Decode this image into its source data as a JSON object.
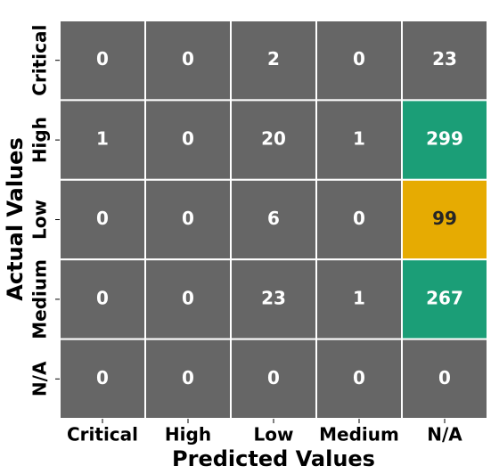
{
  "chart_data": {
    "type": "heatmap",
    "x_label": "Predicted Values",
    "y_label": "Actual Values",
    "x_categories": [
      "Critical",
      "High",
      "Low",
      "Medium",
      "N/A"
    ],
    "y_categories": [
      "Critical",
      "High",
      "Low",
      "Medium",
      "N/A"
    ],
    "values": [
      [
        0,
        0,
        2,
        0,
        23
      ],
      [
        1,
        0,
        20,
        1,
        299
      ],
      [
        0,
        0,
        6,
        0,
        99
      ],
      [
        0,
        0,
        23,
        1,
        267
      ],
      [
        0,
        0,
        0,
        0,
        0
      ]
    ],
    "cell_colors": [
      [
        "#666666",
        "#666666",
        "#666666",
        "#666666",
        "#666666"
      ],
      [
        "#666666",
        "#666666",
        "#666666",
        "#666666",
        "#1b9e77"
      ],
      [
        "#666666",
        "#666666",
        "#666666",
        "#666666",
        "#e6ab02"
      ],
      [
        "#666666",
        "#666666",
        "#666666",
        "#666666",
        "#1b9e77"
      ],
      [
        "#666666",
        "#666666",
        "#666666",
        "#666666",
        "#666666"
      ]
    ]
  }
}
